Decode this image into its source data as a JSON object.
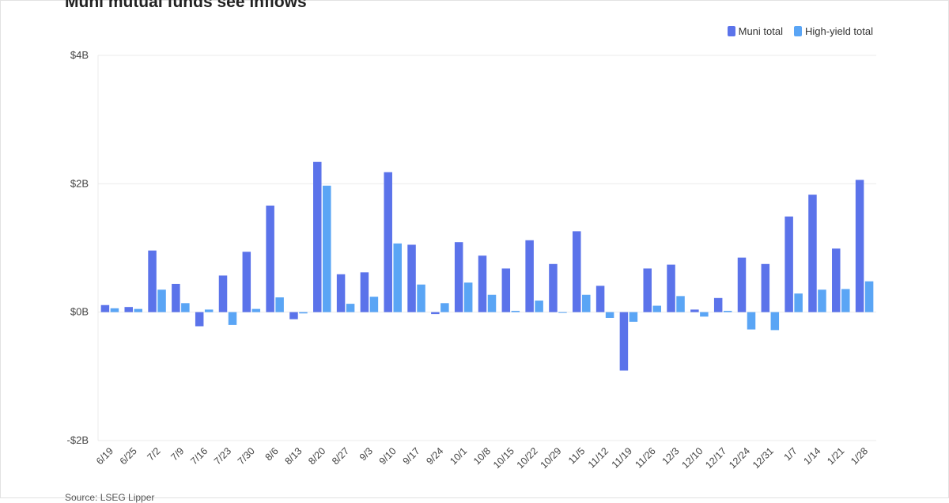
{
  "colors": {
    "muni": "#5b73ea",
    "high_yield": "#5aa5f5",
    "grid": "#ebebeb",
    "axis": "#999999"
  },
  "chart_data": {
    "type": "bar",
    "title": "Muni mutual funds see inflows",
    "source": "Source: LSEG Lipper",
    "legend_position": "top-right",
    "grid": true,
    "ylim": [
      -2,
      4
    ],
    "yticks": [
      {
        "value": 4,
        "label": "$4B"
      },
      {
        "value": 2,
        "label": "$2B"
      },
      {
        "value": 0,
        "label": "$0B"
      },
      {
        "value": -2,
        "label": "-$2B"
      }
    ],
    "categories": [
      "6/19",
      "6/25",
      "7/2",
      "7/9",
      "7/16",
      "7/23",
      "7/30",
      "8/6",
      "8/13",
      "8/20",
      "8/27",
      "9/3",
      "9/10",
      "9/17",
      "9/24",
      "10/1",
      "10/8",
      "10/15",
      "10/22",
      "10/29",
      "11/5",
      "11/12",
      "11/19",
      "11/26",
      "12/3",
      "12/10",
      "12/17",
      "12/24",
      "12/31",
      "1/7",
      "1/14",
      "1/21",
      "1/28"
    ],
    "series": [
      {
        "name": "Muni total",
        "values": [
          0.11,
          0.08,
          0.96,
          0.44,
          -0.22,
          0.57,
          0.94,
          1.66,
          -0.11,
          2.34,
          0.59,
          0.62,
          2.18,
          1.05,
          -0.03,
          1.09,
          0.88,
          0.68,
          1.12,
          0.75,
          1.26,
          0.41,
          -0.91,
          0.68,
          0.74,
          0.04,
          0.22,
          0.85,
          0.75,
          1.49,
          1.83,
          0.99,
          2.06
        ]
      },
      {
        "name": "High-yield total",
        "values": [
          0.06,
          0.05,
          0.35,
          0.14,
          0.04,
          -0.2,
          0.05,
          0.23,
          -0.02,
          1.97,
          0.13,
          0.24,
          1.07,
          0.43,
          0.14,
          0.46,
          0.27,
          0.02,
          0.18,
          0.0,
          0.27,
          -0.09,
          -0.15,
          0.1,
          0.25,
          -0.07,
          0.02,
          -0.27,
          -0.28,
          0.29,
          0.35,
          0.36,
          0.48
        ]
      }
    ]
  }
}
